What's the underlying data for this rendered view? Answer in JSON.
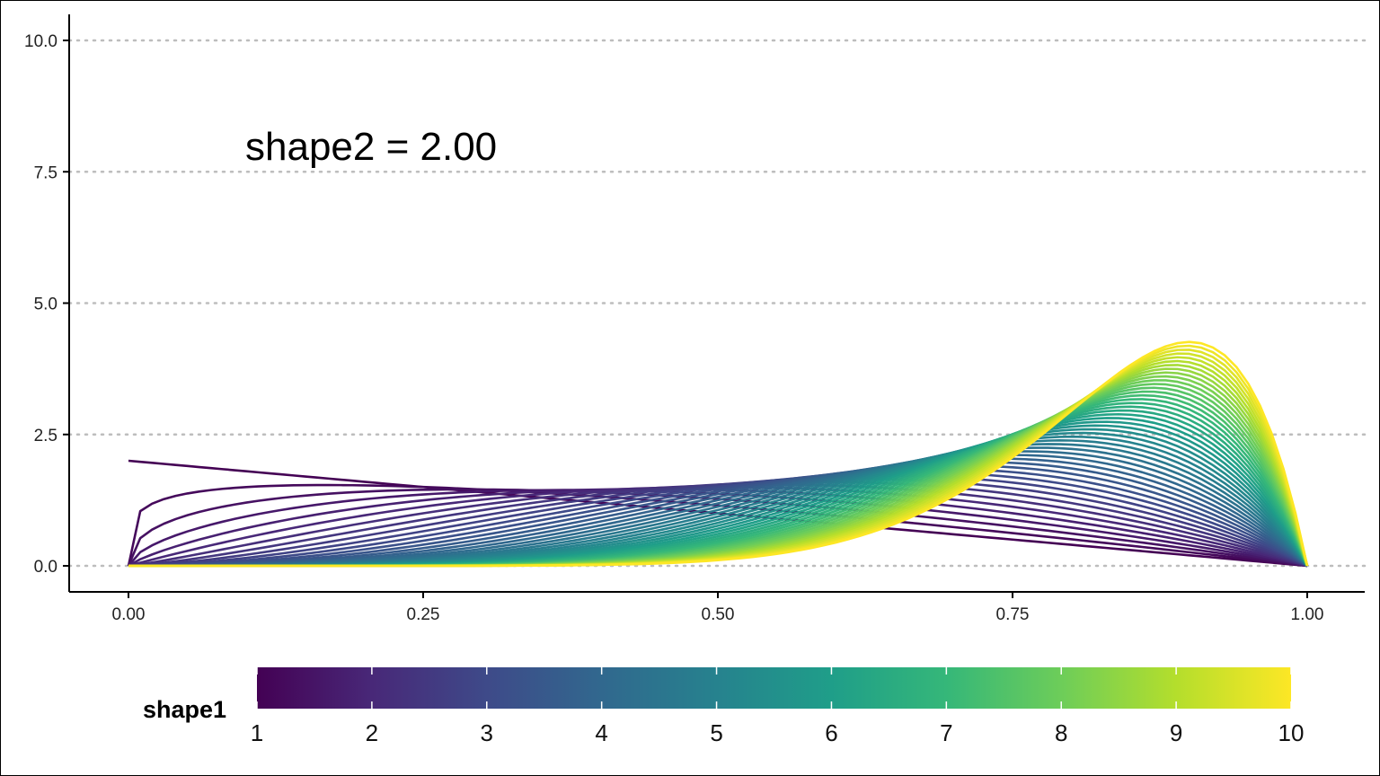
{
  "chart_data": {
    "type": "line",
    "title": "",
    "xlabel": "",
    "ylabel": "",
    "xlim": [
      0,
      1
    ],
    "ylim": [
      0,
      10
    ],
    "x_ticks": [
      "0.00",
      "0.25",
      "0.50",
      "0.75",
      "1.00"
    ],
    "y_ticks": [
      "0.0",
      "2.5",
      "5.0",
      "7.5",
      "10.0"
    ],
    "grid": "horizontal dotted",
    "annotation": "shape2 = 2.00",
    "shape2": 2.0,
    "shape1_values": [
      1.0,
      1.2,
      1.4,
      1.6,
      1.8,
      2.0,
      2.2,
      2.4,
      2.6,
      2.8,
      3.0,
      3.2,
      3.4,
      3.6,
      3.8,
      4.0,
      4.2,
      4.4,
      4.6,
      4.8,
      5.0,
      5.2,
      5.4,
      5.6,
      5.8,
      6.0,
      6.2,
      6.4,
      6.6,
      6.8,
      7.0,
      7.2,
      7.4,
      7.6,
      7.8,
      8.0,
      8.2,
      8.4,
      8.6,
      8.8,
      9.0,
      9.2,
      9.4,
      9.6,
      9.8,
      10.0
    ],
    "legend": {
      "title": "shape1",
      "position": "bottom",
      "type": "colorbar",
      "ticks": [
        "1",
        "2",
        "3",
        "4",
        "5",
        "6",
        "7",
        "8",
        "9",
        "10"
      ],
      "range": [
        1,
        10
      ]
    },
    "colors": {
      "viridis": [
        "#440154",
        "#482878",
        "#3E4A89",
        "#31688E",
        "#26828E",
        "#1F9E89",
        "#35B779",
        "#6DCD59",
        "#B4DE2C",
        "#FDE725"
      ],
      "axis": "#000000",
      "grid": "#BDBDBD"
    }
  }
}
